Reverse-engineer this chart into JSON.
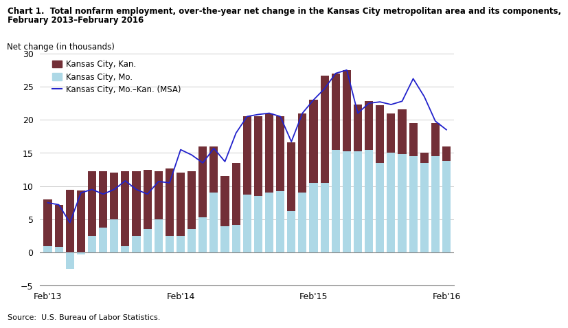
{
  "title_line1": "Chart 1.  Total nonfarm employment, over-the-year net change in the Kansas City metropolitan area and its components,",
  "title_line2": "February 2013–February 2016",
  "ylabel": "Net change (in thousands)",
  "source": "Source:  U.S. Bureau of Labor Statistics.",
  "ylim": [
    -5,
    30
  ],
  "yticks": [
    -5,
    0,
    5,
    10,
    15,
    20,
    25,
    30
  ],
  "kansas_mo": [
    1.0,
    0.8,
    -2.5,
    -0.3,
    2.5,
    3.7,
    5.0,
    1.0,
    2.5,
    3.5,
    5.0,
    2.5,
    2.5,
    3.5,
    5.3,
    9.0,
    4.0,
    4.2,
    8.7,
    8.5,
    9.0,
    9.2,
    6.2,
    9.0,
    10.5,
    10.5,
    15.5,
    15.3,
    15.3,
    15.5,
    13.5,
    15.0,
    14.8,
    14.5,
    13.5,
    14.5,
    13.8
  ],
  "kansas_kan": [
    7.0,
    6.4,
    9.5,
    9.3,
    9.7,
    8.5,
    7.0,
    11.2,
    9.7,
    9.0,
    7.2,
    10.2,
    9.5,
    8.7,
    10.7,
    7.0,
    7.5,
    9.3,
    11.8,
    12.0,
    12.0,
    11.3,
    10.4,
    12.0,
    12.5,
    16.2,
    11.5,
    12.2,
    7.0,
    7.3,
    8.7,
    6.0,
    6.8,
    5.0,
    1.5,
    5.0,
    2.2
  ],
  "msa_line": [
    7.5,
    7.2,
    4.5,
    9.0,
    9.5,
    8.8,
    9.5,
    10.8,
    9.5,
    8.8,
    10.7,
    10.5,
    15.5,
    14.7,
    13.5,
    15.7,
    13.7,
    18.0,
    20.5,
    20.8,
    21.0,
    20.5,
    16.7,
    21.0,
    23.0,
    24.7,
    27.0,
    27.5,
    21.0,
    22.5,
    22.7,
    22.3,
    22.8,
    26.2,
    23.5,
    19.8,
    18.5
  ],
  "color_mo": "#add8e6",
  "color_kan": "#722f37",
  "color_line": "#2222cc"
}
